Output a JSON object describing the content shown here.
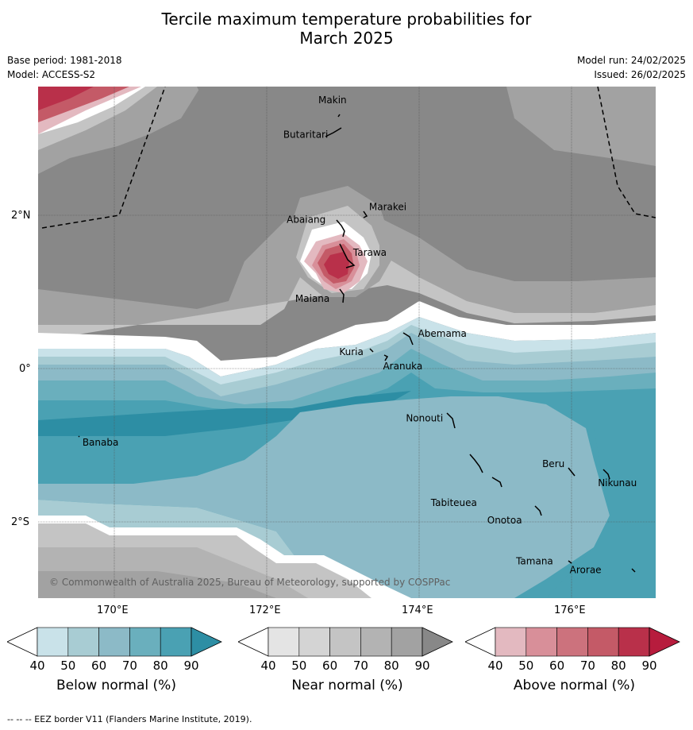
{
  "header": {
    "title_line1": "Tercile maximum temperature probabilities for",
    "title_line2": "March 2025",
    "base_period": "Base period: 1981-2018",
    "model": "Model: ACCESS-S2",
    "model_run": "Model run: 24/02/2025",
    "issued": "Issued: 26/02/2025"
  },
  "axes": {
    "lat_labels": [
      "2°N",
      "0°",
      "2°S"
    ],
    "lon_labels": [
      "170°E",
      "172°E",
      "174°E",
      "176°E"
    ]
  },
  "places": [
    {
      "name": "Makin",
      "lon": 172.99,
      "lat": 3.38
    },
    {
      "name": "Butaritari",
      "lon": 172.79,
      "lat": 3.07
    },
    {
      "name": "Marakei",
      "lon": 173.28,
      "lat": 2.01
    },
    {
      "name": "Abaiang",
      "lon": 172.97,
      "lat": 1.85
    },
    {
      "name": "Tarawa",
      "lon": 173.03,
      "lat": 1.42
    },
    {
      "name": "Maiana",
      "lon": 173.02,
      "lat": 0.92
    },
    {
      "name": "Abemama",
      "lon": 173.86,
      "lat": 0.4
    },
    {
      "name": "Kuria",
      "lon": 173.42,
      "lat": 0.22
    },
    {
      "name": "Aranuka",
      "lon": 173.63,
      "lat": 0.18
    },
    {
      "name": "Nonouti",
      "lon": 174.42,
      "lat": -0.65
    },
    {
      "name": "Banaba",
      "lon": 169.54,
      "lat": -0.88
    },
    {
      "name": "Tabiteuea",
      "lon": 174.8,
      "lat": -1.3
    },
    {
      "name": "Beru",
      "lon": 175.98,
      "lat": -1.33
    },
    {
      "name": "Nikunau",
      "lon": 176.45,
      "lat": -1.37
    },
    {
      "name": "Onotoa",
      "lon": 175.56,
      "lat": -1.82
    },
    {
      "name": "Tamana",
      "lon": 175.98,
      "lat": -2.5
    },
    {
      "name": "Arorae",
      "lon": 176.83,
      "lat": -2.64
    }
  ],
  "copyright": "© Commonwealth of Australia 2025, Bureau of Meteorology, supported by COSPPac",
  "colorbars": [
    {
      "label": "Below normal (%)",
      "ticks": [
        "40",
        "50",
        "60",
        "70",
        "80",
        "90"
      ],
      "colors": [
        "#c9e2e9",
        "#a8ccd3",
        "#8cbac7",
        "#6aafbd",
        "#4aa1b3",
        "#2d8ea4"
      ]
    },
    {
      "label": "Near normal (%)",
      "ticks": [
        "40",
        "50",
        "60",
        "70",
        "80",
        "90"
      ],
      "colors": [
        "#e4e4e4",
        "#d4d4d4",
        "#c4c4c4",
        "#b3b3b3",
        "#a2a2a2",
        "#888888"
      ]
    },
    {
      "label": "Above normal (%)",
      "ticks": [
        "40",
        "50",
        "60",
        "70",
        "80",
        "90"
      ],
      "colors": [
        "#e3b9c0",
        "#d88f99",
        "#cc727d",
        "#c45a67",
        "#b9304a",
        "#b71c3d"
      ]
    }
  ],
  "footer": "--  --  -- EEZ border V11 (Flanders Marine Institute, 2019)."
}
